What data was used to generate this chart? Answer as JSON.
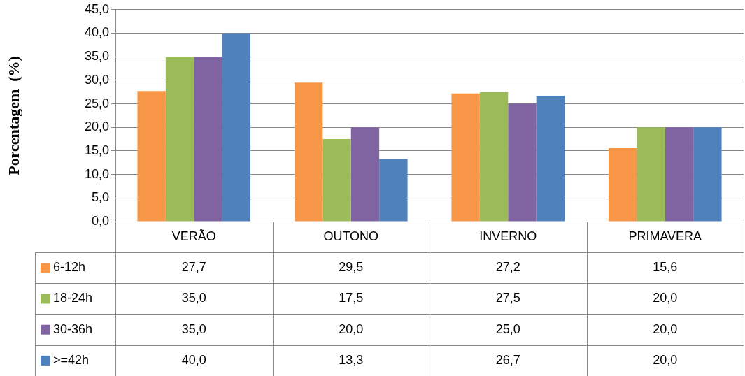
{
  "chart_data": {
    "type": "bar",
    "ylabel": "Porcentagem  (%)",
    "categories": [
      "VERÃO",
      "OUTONO",
      "INVERNO",
      "PRIMAVERA"
    ],
    "series": [
      {
        "name": "6-12h",
        "color": "#f79646",
        "values": [
          27.7,
          29.5,
          27.2,
          15.6
        ],
        "value_labels": [
          "27,7",
          "29,5",
          "27,2",
          "15,6"
        ]
      },
      {
        "name": "18-24h",
        "color": "#9bbb59",
        "values": [
          35.0,
          17.5,
          27.5,
          20.0
        ],
        "value_labels": [
          "35,0",
          "17,5",
          "27,5",
          "20,0"
        ]
      },
      {
        "name": "30-36h",
        "color": "#8064a2",
        "values": [
          35.0,
          20.0,
          25.0,
          20.0
        ],
        "value_labels": [
          "35,0",
          "20,0",
          "25,0",
          "20,0"
        ]
      },
      {
        "name": ">=42h",
        "color": "#4f81bd",
        "values": [
          40.0,
          13.3,
          26.7,
          20.0
        ],
        "value_labels": [
          "40,0",
          "13,3",
          "26,7",
          "20,0"
        ]
      }
    ],
    "ylim": [
      0,
      45
    ],
    "yticks": [
      {
        "value": 0,
        "label": "0,0"
      },
      {
        "value": 5,
        "label": "5,0"
      },
      {
        "value": 10,
        "label": "10,0"
      },
      {
        "value": 15,
        "label": "15,0"
      },
      {
        "value": 20,
        "label": "20,0"
      },
      {
        "value": 25,
        "label": "25,0"
      },
      {
        "value": 30,
        "label": "30,0"
      },
      {
        "value": 35,
        "label": "35,0"
      },
      {
        "value": 40,
        "label": "40,0"
      },
      {
        "value": 45,
        "label": "45,0"
      }
    ],
    "grid": "y",
    "legend": "bottom"
  }
}
